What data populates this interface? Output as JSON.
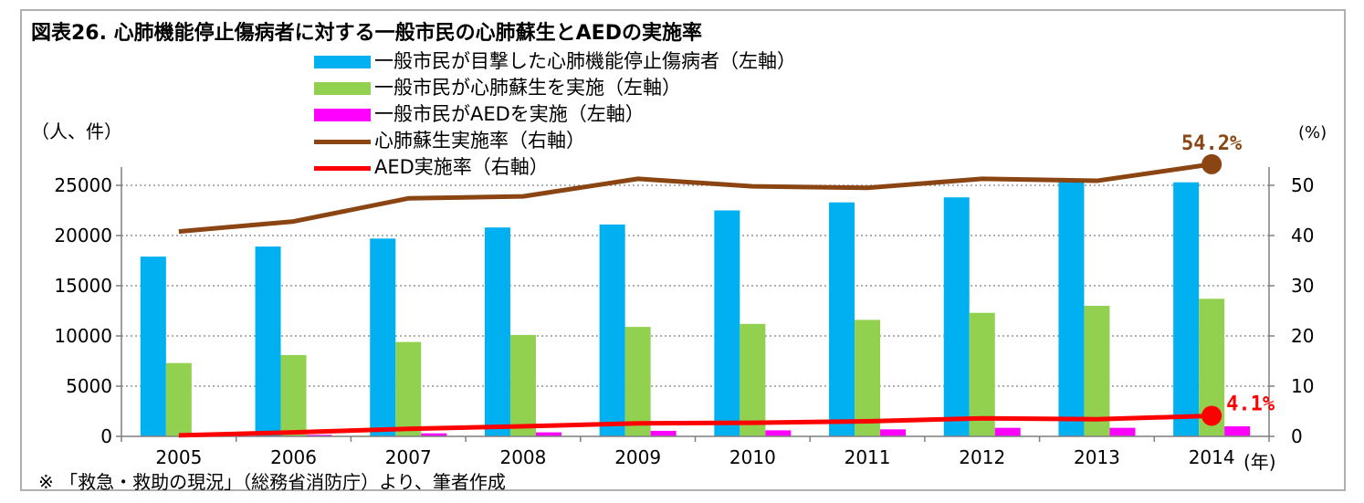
{
  "title": "図表26. 心肺機能停止傷病者に対する一般市民の心肺蘇生とAEDの実施率",
  "left_unit": "（人、件）",
  "right_unit": "(%)",
  "year_unit": "(年)",
  "note": "※ 「救急・救助の現況」（総務省消防庁）より、筆者作成",
  "colors": {
    "witnessed": "#00b0f0",
    "cpr": "#92d050",
    "aed": "#ff00ff",
    "cpr_rate": "#8b4513",
    "aed_rate": "#ff0000"
  },
  "chart_data": {
    "type": "bar",
    "categories": [
      "2005",
      "2006",
      "2007",
      "2008",
      "2009",
      "2010",
      "2011",
      "2012",
      "2013",
      "2014"
    ],
    "series": [
      {
        "name": "一般市民が目撃した心肺機能停止傷病者（左軸）",
        "kind": "bar",
        "axis": "left",
        "values": [
          17900,
          18900,
          19700,
          20800,
          21100,
          22500,
          23300,
          23800,
          25500,
          25300
        ]
      },
      {
        "name": "一般市民が心肺蘇生を実施（左軸）",
        "kind": "bar",
        "axis": "left",
        "values": [
          7300,
          8100,
          9400,
          10100,
          10900,
          11200,
          11600,
          12300,
          13000,
          13700
        ]
      },
      {
        "name": "一般市民がAEDを実施（左軸）",
        "kind": "bar",
        "axis": "left",
        "values": [
          50,
          150,
          300,
          400,
          550,
          600,
          700,
          850,
          850,
          1000
        ]
      },
      {
        "name": "心肺蘇生実施率（右軸）",
        "kind": "line",
        "axis": "right",
        "values": [
          40.8,
          42.8,
          47.4,
          47.8,
          51.3,
          49.8,
          49.5,
          51.3,
          50.9,
          54.2
        ]
      },
      {
        "name": "AED実施率（右軸）",
        "kind": "line",
        "axis": "right",
        "values": [
          0.2,
          0.8,
          1.5,
          2.0,
          2.6,
          2.7,
          3.0,
          3.6,
          3.4,
          4.1
        ]
      }
    ],
    "y_left": {
      "range": [
        0,
        25000
      ],
      "ticks": [
        "0",
        "5000",
        "10000",
        "15000",
        "20000",
        "25000"
      ]
    },
    "y_right": {
      "range": [
        0,
        50
      ],
      "ticks": [
        "0",
        "10",
        "20",
        "30",
        "40",
        "50"
      ]
    },
    "annotations": [
      {
        "series": "心肺蘇生実施率（右軸）",
        "category": "2014",
        "text": "54.2%"
      },
      {
        "series": "AED実施率（右軸）",
        "category": "2014",
        "text": "4.1%"
      }
    ],
    "grid": "horizontal dotted",
    "legend_position": "top"
  }
}
